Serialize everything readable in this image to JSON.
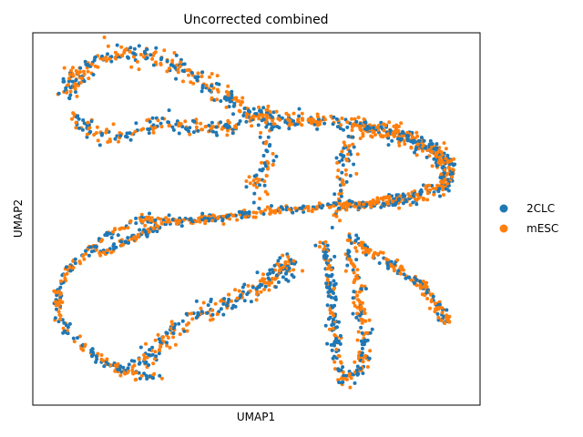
{
  "chart_data": {
    "type": "scatter",
    "title": "Uncorrected combined",
    "xlabel": "UMAP1",
    "ylabel": "UMAP2",
    "grid": false,
    "ticks": false,
    "legend_position": "right",
    "series": [
      {
        "name": "2CLC",
        "color": "#1f77b4"
      },
      {
        "name": "mESC",
        "color": "#ff7f0e"
      }
    ],
    "xlim": [
      0,
      100
    ],
    "ylim": [
      0,
      100
    ],
    "structure_note": "Points trace curved UMAP clusters: a top-left blob with an arm to the right, a right-side lobe, a horizontal band through the middle, a left loop curving down, a lower-middle arc, and two downward prongs on the lower right."
  }
}
